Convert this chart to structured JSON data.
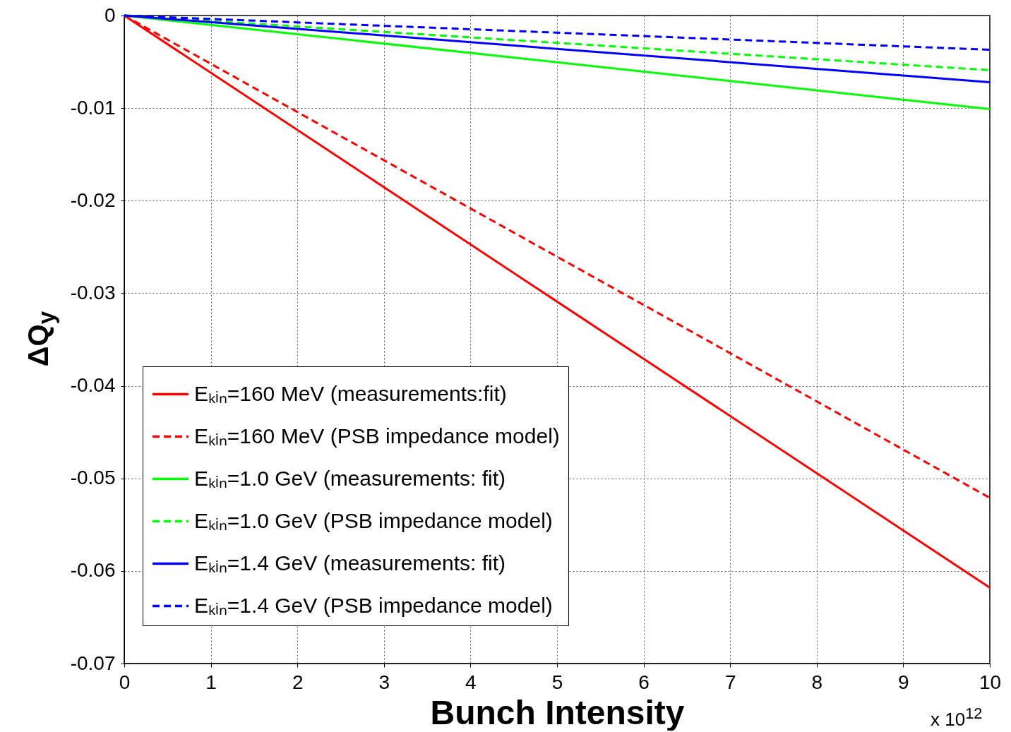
{
  "chart_data": {
    "type": "line",
    "xlabel": "Bunch Intensity",
    "ylabel": "ΔQ$_{y}$",
    "annotations": [
      "x 10$^{12}$"
    ],
    "xlim": [
      0,
      10
    ],
    "ylim": [
      -0.07,
      0
    ],
    "xticks": [
      0,
      1,
      2,
      3,
      4,
      5,
      6,
      7,
      8,
      9,
      10
    ],
    "yticks": [
      -0.07,
      -0.06,
      -0.05,
      -0.04,
      -0.03,
      -0.02,
      -0.01,
      0
    ],
    "grid": true,
    "legend": "bottom left",
    "marker": "none",
    "x": [
      0,
      10
    ],
    "series": [
      {
        "name": "Eₖᵢₙ=160 MeV (measurements:fit)",
        "color": "#ff0000",
        "line_style": "solid",
        "values": [
          0,
          -0.0618
        ]
      },
      {
        "name": "Eₖᵢₙ=160 MeV (PSB impedance model)",
        "color": "#ff0000",
        "line_style": "dashed",
        "values": [
          0,
          -0.0521
        ]
      },
      {
        "name": "Eₖᵢₙ=1.0 GeV (measurements: fit)",
        "color": "#00ff00",
        "line_style": "solid",
        "values": [
          0,
          -0.0101
        ]
      },
      {
        "name": "Eₖᵢₙ=1.0 GeV (PSB impedance model)",
        "color": "#00ff00",
        "line_style": "dashed",
        "values": [
          0,
          -0.0059
        ]
      },
      {
        "name": "Eₖᵢₙ=1.4 GeV (measurements: fit)",
        "color": "#0000ff",
        "line_style": "solid",
        "values": [
          0,
          -0.0072
        ]
      },
      {
        "name": "Eₖᵢₙ=1.4 GeV (PSB impedance model)",
        "color": "#0000ff",
        "line_style": "dashed",
        "values": [
          0,
          -0.0037
        ]
      }
    ]
  }
}
